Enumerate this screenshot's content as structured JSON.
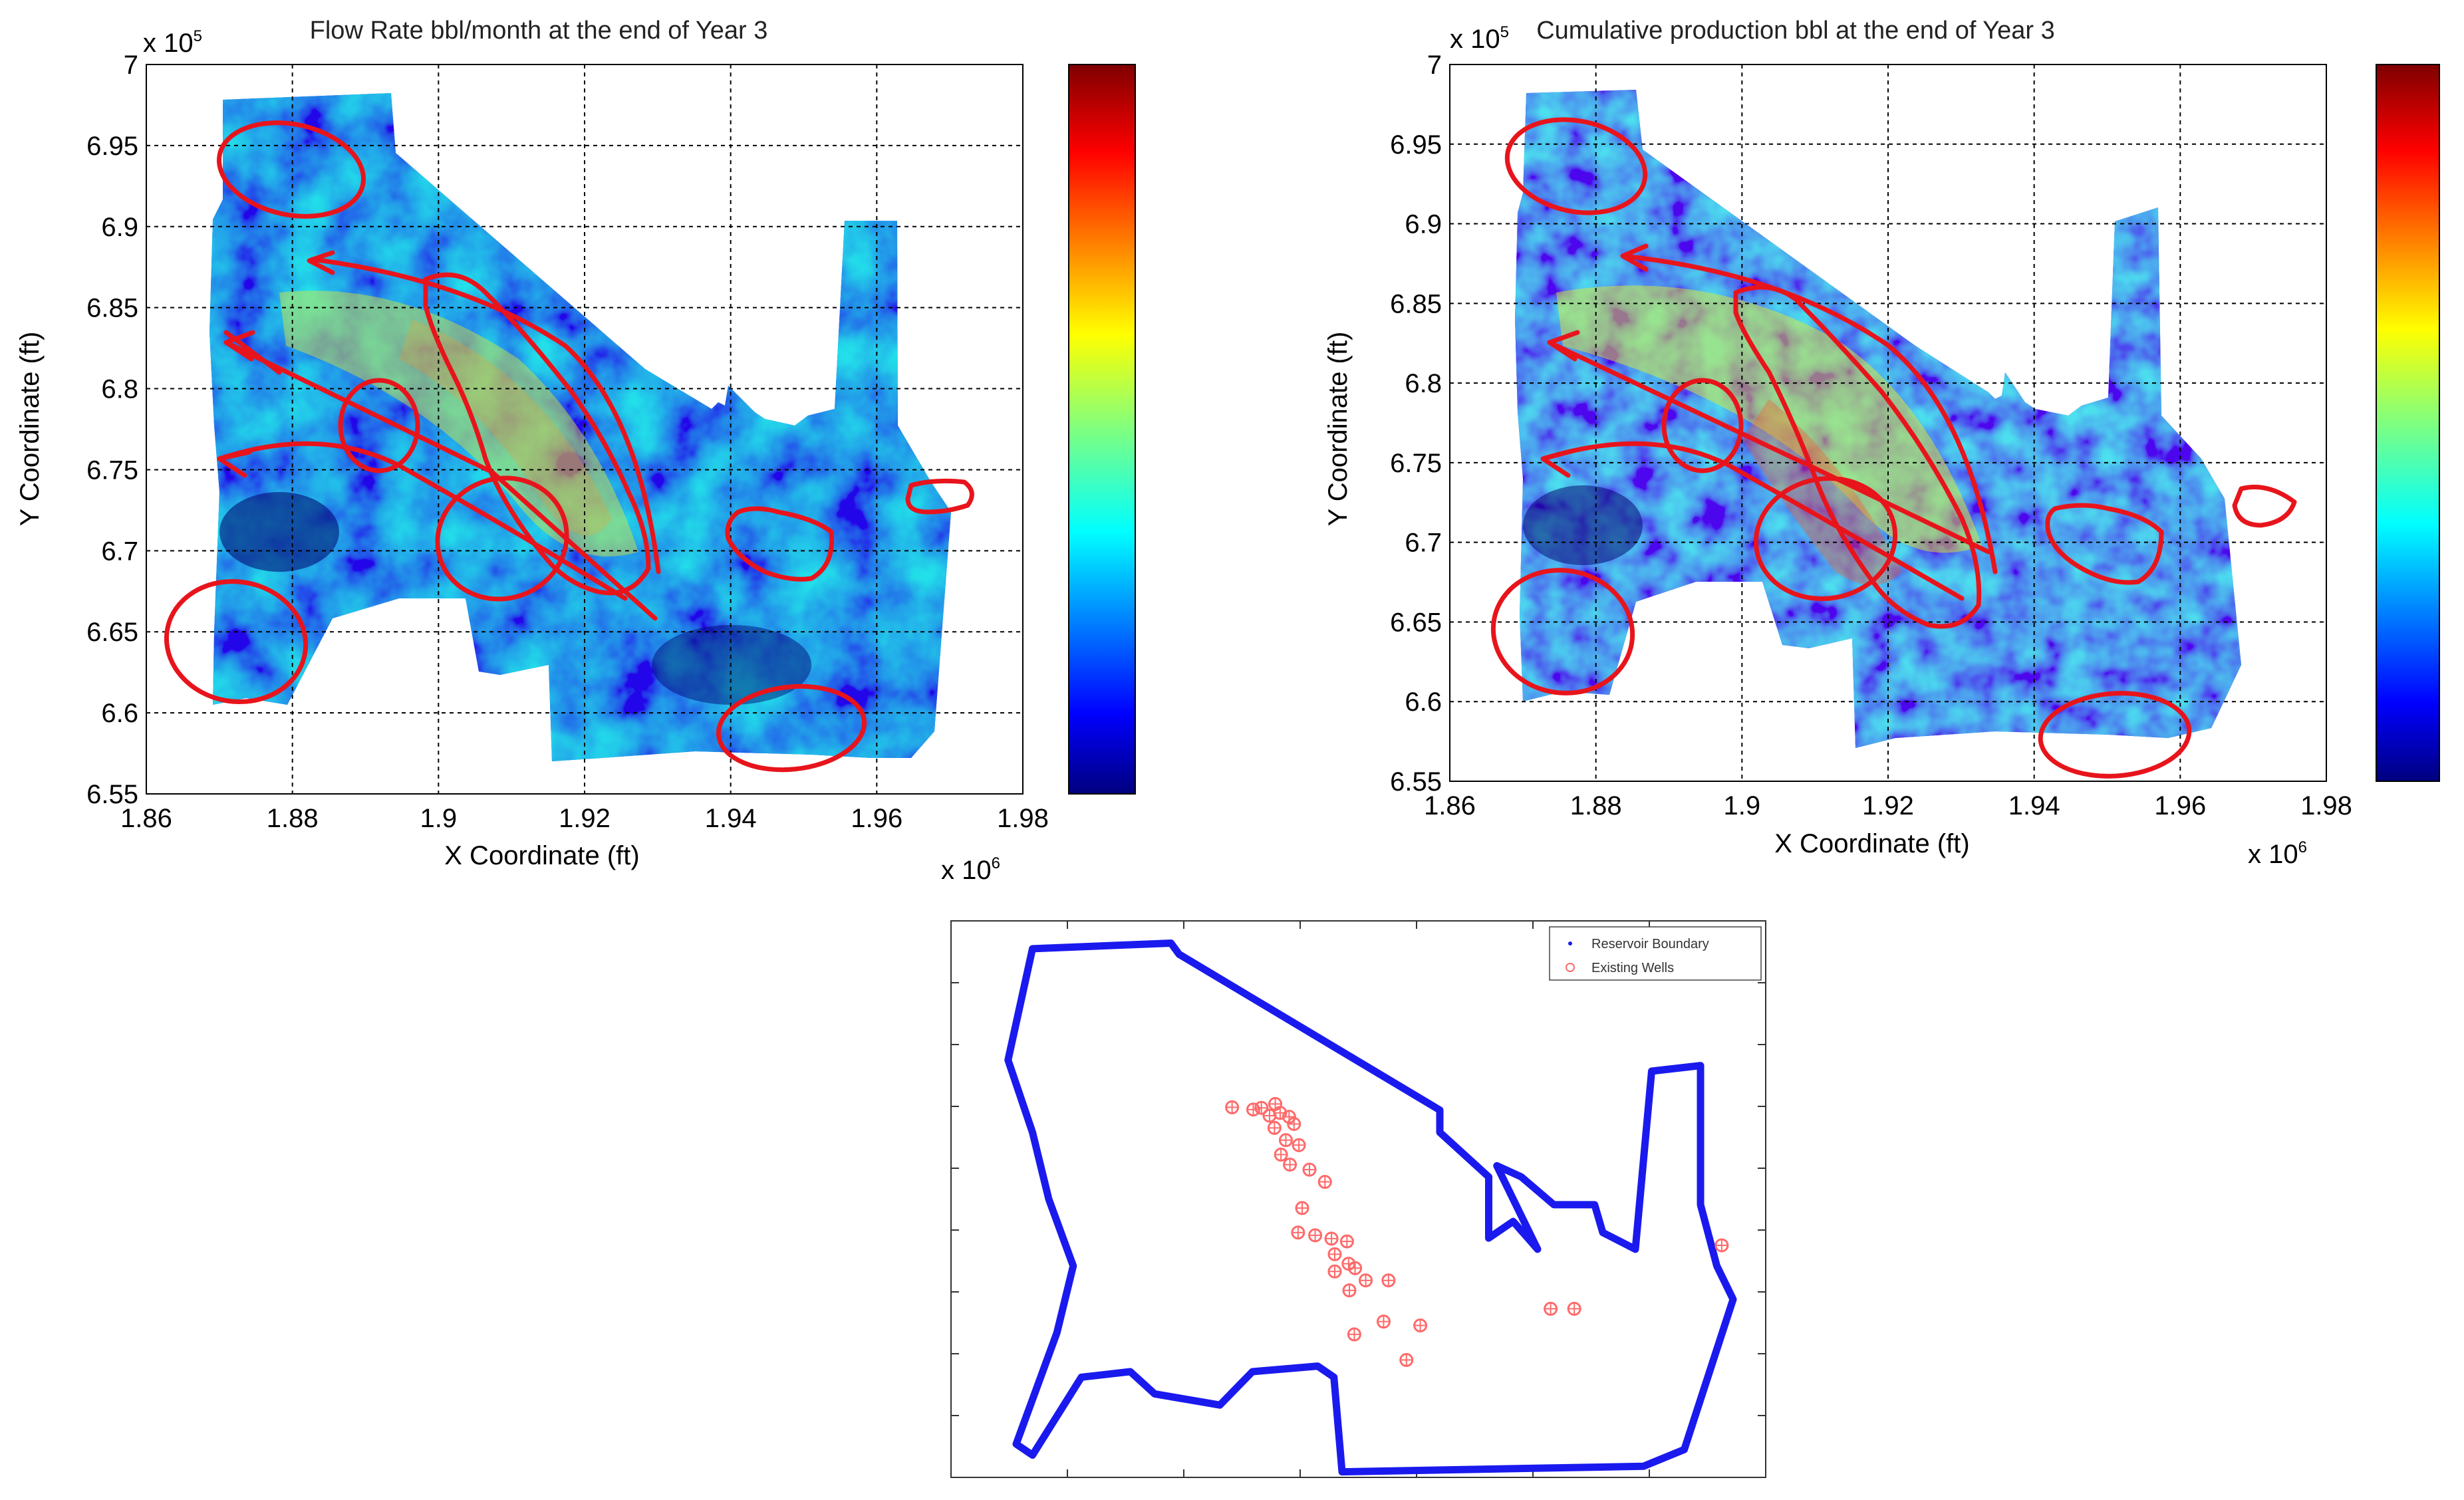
{
  "chart_data": [
    {
      "type": "heatmap",
      "title": "Flow Rate bbl/month at the end of Year 3",
      "xlabel": "X Coordinate (ft)",
      "ylabel": "Y Coordinate (ft)",
      "x_ticks": [
        "1.86",
        "1.88",
        "1.9",
        "1.92",
        "1.94",
        "1.96",
        "1.98"
      ],
      "y_ticks": [
        "7",
        "6.95",
        "6.9",
        "6.85",
        "6.8",
        "6.75",
        "6.7",
        "6.65",
        "6.6",
        "6.55"
      ],
      "x_multiplier": "x 10",
      "x_exp": "6",
      "y_multiplier": "x 10",
      "y_exp": "5",
      "xlim": [
        1.86,
        1.98
      ],
      "ylim": [
        6.55,
        7.0
      ],
      "grid": true,
      "colormap": "jet",
      "colorbar": true,
      "colors": {
        "annotation": "#e8141c"
      }
    },
    {
      "type": "heatmap",
      "title": "Cumulative production bbl at the end of Year 3",
      "xlabel": "X Coordinate (ft)",
      "ylabel": "Y Coordinate (ft)",
      "x_ticks": [
        "1.86",
        "1.88",
        "1.9",
        "1.92",
        "1.94",
        "1.96",
        "1.98"
      ],
      "y_ticks": [
        "7",
        "6.95",
        "6.9",
        "6.85",
        "6.8",
        "6.75",
        "6.7",
        "6.65",
        "6.6",
        "6.55"
      ],
      "x_multiplier": "x 10",
      "x_exp": "6",
      "y_multiplier": "x 10",
      "y_exp": "5",
      "xlim": [
        1.86,
        1.98
      ],
      "ylim": [
        6.55,
        7.0
      ],
      "grid": true,
      "colormap": "jet",
      "colorbar": true,
      "colors": {
        "annotation": "#e8141c"
      }
    },
    {
      "type": "scatter",
      "legend": [
        "Reservoir Boundary",
        "Existing Wells"
      ],
      "legend_position": "top-right",
      "colors": {
        "boundary": "#1a1aee",
        "wells": "#ff6a6a"
      },
      "series": [
        {
          "name": "Existing Wells",
          "points": [
            [
              0.345,
              0.335
            ],
            [
              0.371,
              0.339
            ],
            [
              0.381,
              0.336
            ],
            [
              0.398,
              0.329
            ],
            [
              0.404,
              0.345
            ],
            [
              0.391,
              0.35
            ],
            [
              0.415,
              0.352
            ],
            [
              0.421,
              0.365
            ],
            [
              0.397,
              0.372
            ],
            [
              0.411,
              0.394
            ],
            [
              0.427,
              0.403
            ],
            [
              0.405,
              0.42
            ],
            [
              0.416,
              0.438
            ],
            [
              0.44,
              0.447
            ],
            [
              0.459,
              0.469
            ],
            [
              0.431,
              0.516
            ],
            [
              0.426,
              0.56
            ],
            [
              0.447,
              0.565
            ],
            [
              0.467,
              0.571
            ],
            [
              0.486,
              0.576
            ],
            [
              0.471,
              0.599
            ],
            [
              0.488,
              0.616
            ],
            [
              0.471,
              0.63
            ],
            [
              0.496,
              0.624
            ],
            [
              0.509,
              0.646
            ],
            [
              0.537,
              0.646
            ],
            [
              0.489,
              0.664
            ],
            [
              0.495,
              0.743
            ],
            [
              0.531,
              0.72
            ],
            [
              0.576,
              0.727
            ],
            [
              0.559,
              0.789
            ],
            [
              0.736,
              0.697
            ],
            [
              0.765,
              0.697
            ],
            [
              0.946,
              0.583
            ]
          ]
        },
        {
          "name": "Reservoir Boundary",
          "points": [
            [
              0.1,
              0.05
            ],
            [
              0.27,
              0.04
            ],
            [
              0.28,
              0.06
            ],
            [
              0.6,
              0.34
            ],
            [
              0.6,
              0.38
            ],
            [
              0.66,
              0.46
            ],
            [
              0.66,
              0.57
            ],
            [
              0.69,
              0.54
            ],
            [
              0.72,
              0.59
            ],
            [
              0.67,
              0.44
            ],
            [
              0.7,
              0.46
            ],
            [
              0.74,
              0.51
            ],
            [
              0.79,
              0.51
            ],
            [
              0.8,
              0.56
            ],
            [
              0.84,
              0.59
            ],
            [
              0.86,
              0.27
            ],
            [
              0.92,
              0.26
            ],
            [
              0.92,
              0.51
            ],
            [
              0.94,
              0.62
            ],
            [
              0.96,
              0.68
            ],
            [
              0.9,
              0.95
            ],
            [
              0.85,
              0.98
            ],
            [
              0.48,
              0.99
            ],
            [
              0.47,
              0.82
            ],
            [
              0.45,
              0.8
            ],
            [
              0.37,
              0.81
            ],
            [
              0.33,
              0.87
            ],
            [
              0.25,
              0.85
            ],
            [
              0.22,
              0.81
            ],
            [
              0.16,
              0.82
            ],
            [
              0.1,
              0.96
            ],
            [
              0.08,
              0.94
            ],
            [
              0.11,
              0.82
            ],
            [
              0.13,
              0.74
            ],
            [
              0.15,
              0.62
            ],
            [
              0.12,
              0.5
            ],
            [
              0.1,
              0.38
            ],
            [
              0.07,
              0.25
            ]
          ]
        }
      ]
    }
  ]
}
